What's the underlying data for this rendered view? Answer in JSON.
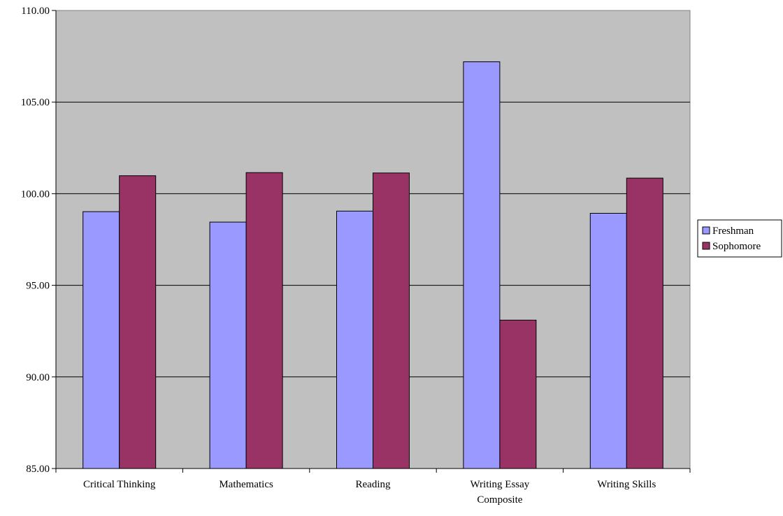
{
  "chart_data": {
    "type": "bar",
    "categories": [
      [
        "Critical Thinking"
      ],
      [
        "Mathematics"
      ],
      [
        "Reading"
      ],
      [
        "Writing Essay",
        "Composite"
      ],
      [
        "Writing Skills"
      ]
    ],
    "series": [
      {
        "name": "Freshman",
        "values": [
          99.02,
          98.45,
          99.05,
          107.2,
          98.93
        ],
        "color": "#9999ff"
      },
      {
        "name": "Sophomore",
        "values": [
          100.98,
          101.15,
          101.13,
          93.1,
          100.85
        ],
        "color": "#993366"
      }
    ],
    "yticks": [
      "85.00",
      "90.00",
      "95.00",
      "100.00",
      "105.00",
      "110.00"
    ],
    "ylim": [
      85,
      110
    ],
    "plot_background": "#c0c0c0",
    "grid": true,
    "legend_position": "right"
  }
}
